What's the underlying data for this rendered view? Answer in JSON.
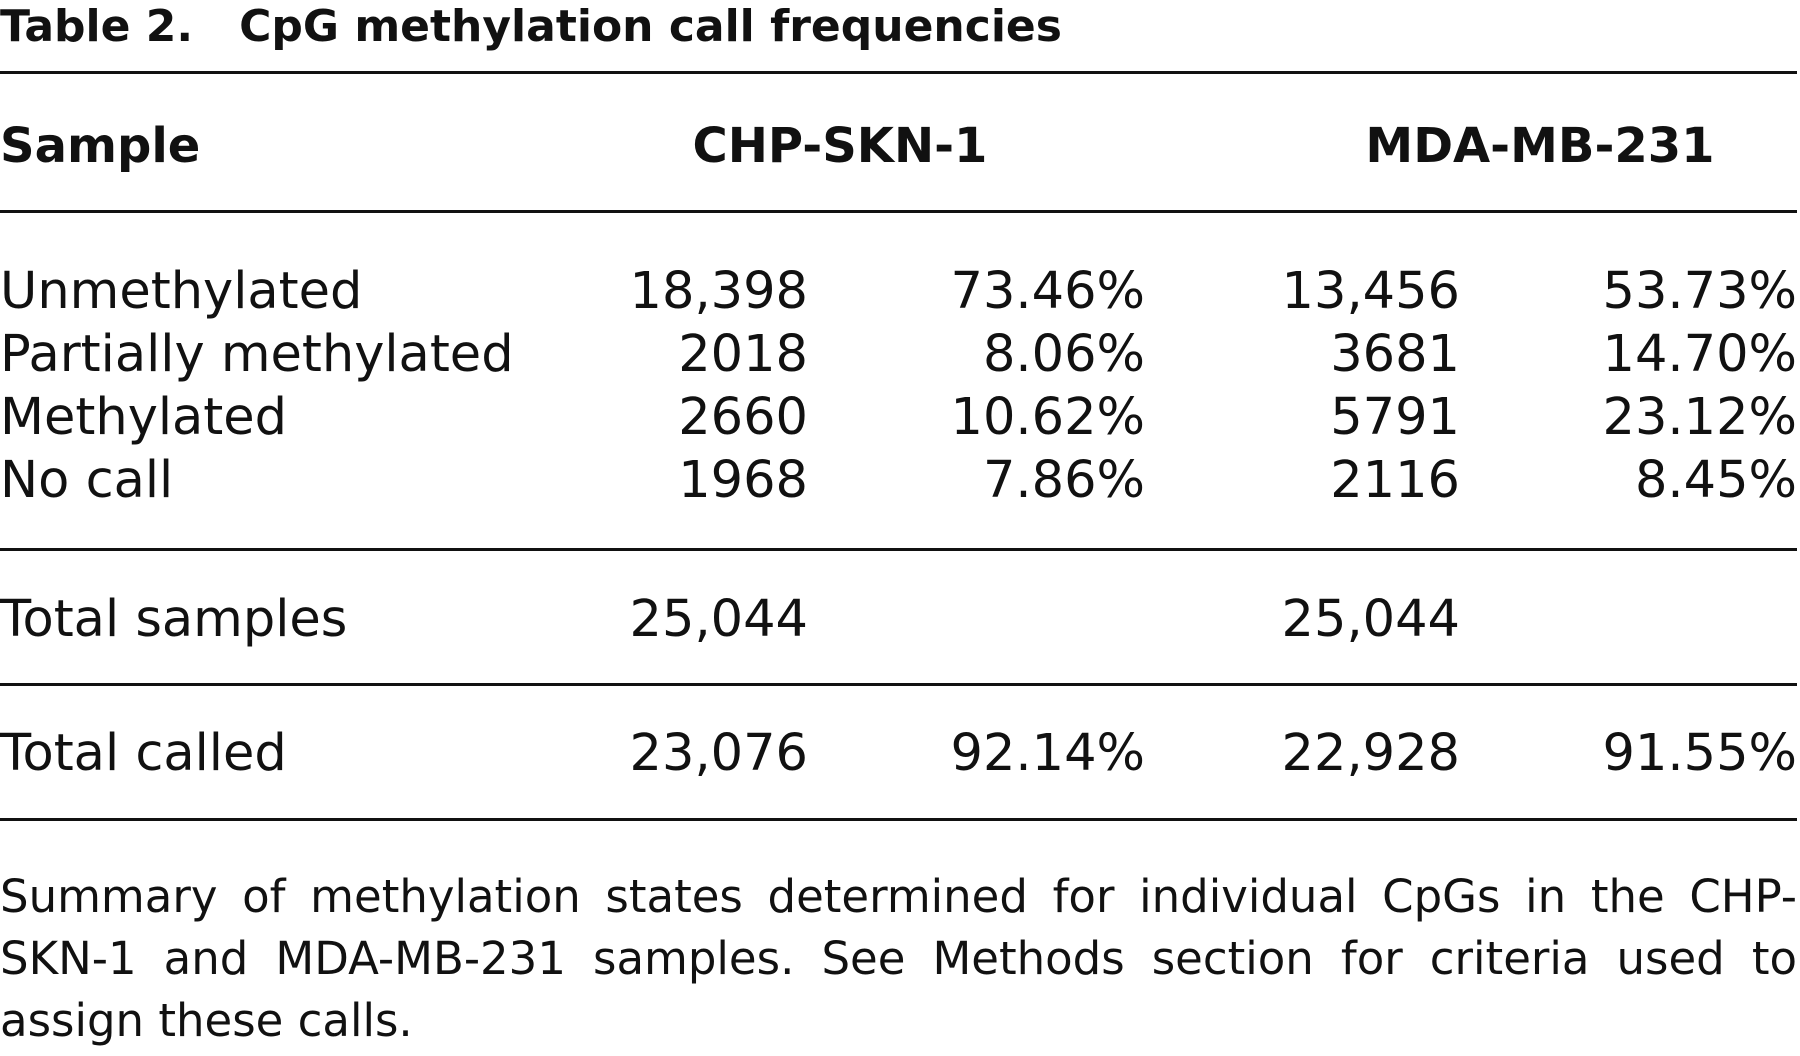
{
  "table": {
    "label": "Table 2.",
    "title": "CpG methylation call frequencies",
    "header": {
      "sample": "Sample",
      "col1": "CHP-SKN-1",
      "col2": "MDA-MB-231"
    },
    "rows": [
      {
        "label": "Unmethylated",
        "c1_count": "18,398",
        "c1_pct": "73.46%",
        "c2_count": "13,456",
        "c2_pct": "53.73%"
      },
      {
        "label": "Partially methylated",
        "c1_count": "2018",
        "c1_pct": "8.06%",
        "c2_count": "3681",
        "c2_pct": "14.70%"
      },
      {
        "label": "Methylated",
        "c1_count": "2660",
        "c1_pct": "10.62%",
        "c2_count": "5791",
        "c2_pct": "23.12%"
      },
      {
        "label": "No call",
        "c1_count": "1968",
        "c1_pct": "7.86%",
        "c2_count": "2116",
        "c2_pct": "8.45%"
      }
    ],
    "total_samples": {
      "label": "Total samples",
      "c1_count": "25,044",
      "c2_count": "25,044"
    },
    "total_called": {
      "label": "Total called",
      "c1_count": "23,076",
      "c1_pct": "92.14%",
      "c2_count": "22,928",
      "c2_pct": "91.55%"
    },
    "footnote": "Summary of methylation states determined for individual CpGs in the CHP-SKN-1 and MDA-MB-231 samples. See Methods section for criteria used to assign these calls."
  }
}
